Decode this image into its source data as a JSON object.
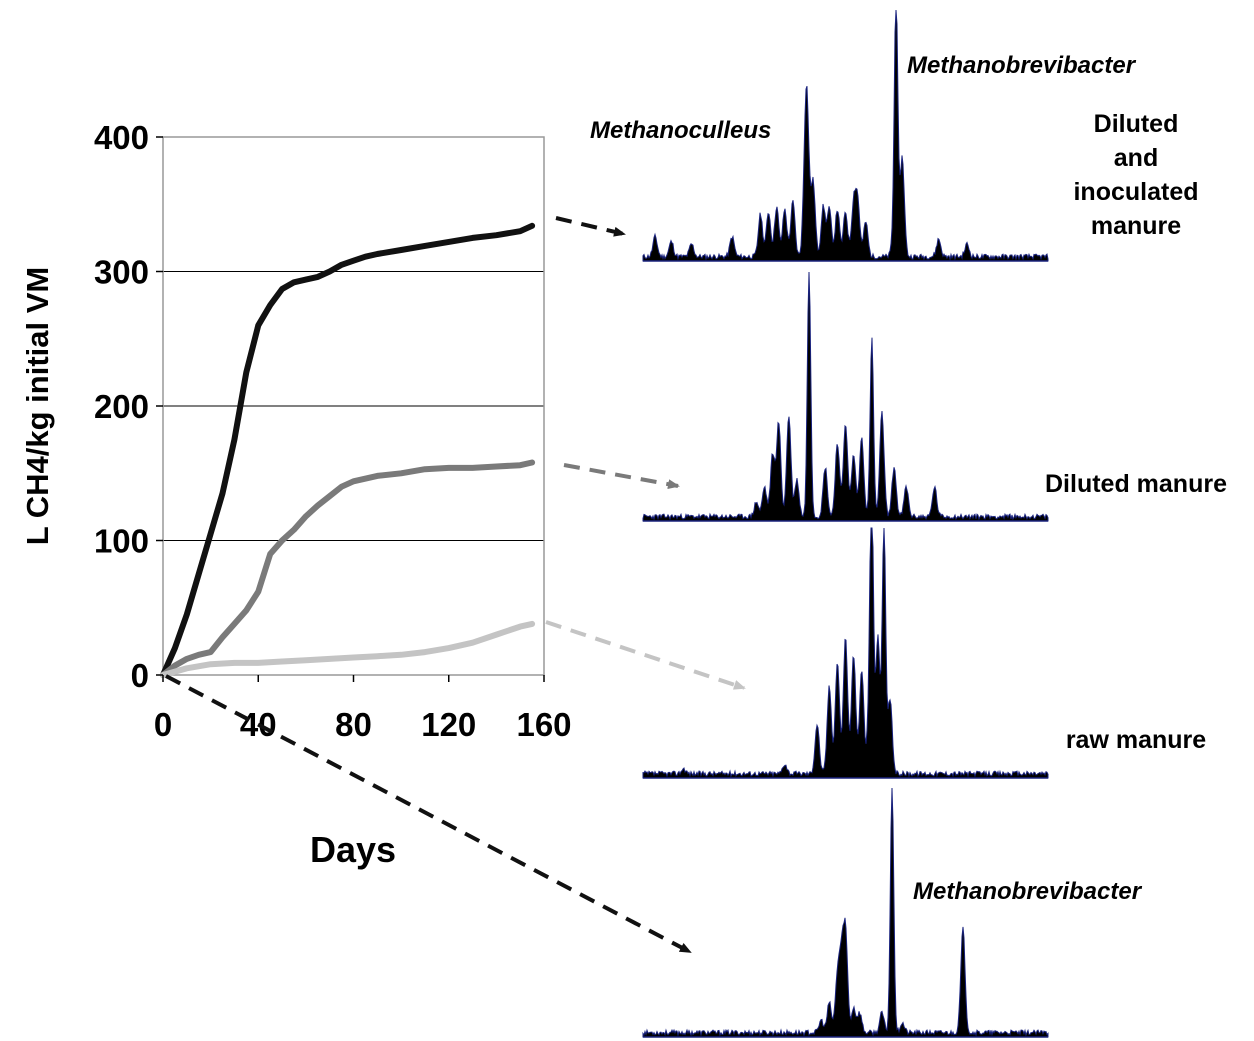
{
  "chart_data": [
    {
      "type": "line",
      "xlabel": "Days",
      "ylabel": "L CH4/kg initial VM",
      "xlim": [
        0,
        160
      ],
      "ylim": [
        0,
        400
      ],
      "x_ticks": [
        "0",
        "40",
        "80",
        "120",
        "160"
      ],
      "y_ticks": [
        "0",
        "100",
        "200",
        "300",
        "400"
      ],
      "grid": "horizontal",
      "series": [
        {
          "color": "#111111",
          "x": [
            0,
            5,
            10,
            15,
            20,
            25,
            30,
            35,
            40,
            45,
            50,
            55,
            60,
            65,
            70,
            75,
            80,
            85,
            90,
            100,
            110,
            120,
            130,
            140,
            150,
            155
          ],
          "y": [
            0,
            20,
            45,
            75,
            105,
            135,
            175,
            225,
            260,
            275,
            287,
            292,
            294,
            296,
            300,
            305,
            308,
            311,
            313,
            316,
            319,
            322,
            325,
            327,
            330,
            334
          ]
        },
        {
          "color": "#7a7a7a",
          "x": [
            0,
            5,
            10,
            15,
            20,
            25,
            30,
            35,
            40,
            45,
            50,
            55,
            60,
            65,
            70,
            75,
            80,
            90,
            100,
            110,
            120,
            130,
            140,
            150,
            155
          ],
          "y": [
            0,
            7,
            12,
            15,
            17,
            28,
            38,
            48,
            62,
            90,
            100,
            108,
            118,
            126,
            133,
            140,
            144,
            148,
            150,
            153,
            154,
            154,
            155,
            156,
            158
          ]
        },
        {
          "color": "#c4c4c4",
          "x": [
            0,
            10,
            20,
            30,
            40,
            50,
            60,
            70,
            80,
            90,
            100,
            110,
            120,
            130,
            140,
            150,
            155
          ],
          "y": [
            0,
            5,
            8,
            9,
            9,
            10,
            11,
            12,
            13,
            14,
            15,
            17,
            20,
            24,
            30,
            36,
            38
          ]
        }
      ]
    },
    {
      "type": "area",
      "label": "Diluted and inoculated manure",
      "label_lines": [
        "Diluted",
        "and",
        "inoculated",
        "manure"
      ],
      "annotations": [
        "Methanoculleus",
        "Methanobrevibacter"
      ],
      "peaks": [
        {
          "x": 0.03,
          "h": 0.08
        },
        {
          "x": 0.07,
          "h": 0.06
        },
        {
          "x": 0.12,
          "h": 0.05
        },
        {
          "x": 0.22,
          "h": 0.08
        },
        {
          "x": 0.29,
          "h": 0.17
        },
        {
          "x": 0.31,
          "h": 0.18
        },
        {
          "x": 0.33,
          "h": 0.2
        },
        {
          "x": 0.35,
          "h": 0.19
        },
        {
          "x": 0.37,
          "h": 0.22
        },
        {
          "x": 0.4,
          "h": 0.24
        },
        {
          "x": 0.405,
          "h": 0.52
        },
        {
          "x": 0.42,
          "h": 0.3
        },
        {
          "x": 0.445,
          "h": 0.2
        },
        {
          "x": 0.46,
          "h": 0.19
        },
        {
          "x": 0.48,
          "h": 0.19
        },
        {
          "x": 0.5,
          "h": 0.18
        },
        {
          "x": 0.52,
          "h": 0.21
        },
        {
          "x": 0.53,
          "h": 0.22
        },
        {
          "x": 0.55,
          "h": 0.14
        },
        {
          "x": 0.62,
          "h": 0.1
        },
        {
          "x": 0.625,
          "h": 1.0
        },
        {
          "x": 0.64,
          "h": 0.4
        },
        {
          "x": 0.73,
          "h": 0.07
        },
        {
          "x": 0.8,
          "h": 0.05
        }
      ]
    },
    {
      "type": "area",
      "label": "Diluted manure",
      "peaks": [
        {
          "x": 0.28,
          "h": 0.06
        },
        {
          "x": 0.3,
          "h": 0.12
        },
        {
          "x": 0.32,
          "h": 0.25
        },
        {
          "x": 0.335,
          "h": 0.38
        },
        {
          "x": 0.36,
          "h": 0.41
        },
        {
          "x": 0.38,
          "h": 0.15
        },
        {
          "x": 0.41,
          "h": 1.0
        },
        {
          "x": 0.45,
          "h": 0.2
        },
        {
          "x": 0.48,
          "h": 0.3
        },
        {
          "x": 0.5,
          "h": 0.38
        },
        {
          "x": 0.52,
          "h": 0.25
        },
        {
          "x": 0.54,
          "h": 0.32
        },
        {
          "x": 0.565,
          "h": 0.72
        },
        {
          "x": 0.59,
          "h": 0.42
        },
        {
          "x": 0.62,
          "h": 0.2
        },
        {
          "x": 0.65,
          "h": 0.12
        },
        {
          "x": 0.72,
          "h": 0.12
        }
      ]
    },
    {
      "type": "area",
      "label": "raw manure",
      "peaks": [
        {
          "x": 0.1,
          "h": 0.02
        },
        {
          "x": 0.35,
          "h": 0.04
        },
        {
          "x": 0.43,
          "h": 0.2
        },
        {
          "x": 0.46,
          "h": 0.35
        },
        {
          "x": 0.48,
          "h": 0.45
        },
        {
          "x": 0.5,
          "h": 0.55
        },
        {
          "x": 0.52,
          "h": 0.48
        },
        {
          "x": 0.54,
          "h": 0.42
        },
        {
          "x": 0.56,
          "h": 0.3
        },
        {
          "x": 0.565,
          "h": 0.98
        },
        {
          "x": 0.58,
          "h": 0.55
        },
        {
          "x": 0.595,
          "h": 1.0
        },
        {
          "x": 0.61,
          "h": 0.3
        }
      ]
    },
    {
      "type": "area",
      "label": "",
      "annotations": [
        "Methanobrevibacter"
      ],
      "peaks": [
        {
          "x": 0.44,
          "h": 0.05
        },
        {
          "x": 0.46,
          "h": 0.12
        },
        {
          "x": 0.48,
          "h": 0.22
        },
        {
          "x": 0.49,
          "h": 0.28
        },
        {
          "x": 0.5,
          "h": 0.4
        },
        {
          "x": 0.52,
          "h": 0.1
        },
        {
          "x": 0.535,
          "h": 0.08
        },
        {
          "x": 0.59,
          "h": 0.08
        },
        {
          "x": 0.615,
          "h": 1.0
        },
        {
          "x": 0.64,
          "h": 0.04
        },
        {
          "x": 0.79,
          "h": 0.42
        }
      ]
    }
  ]
}
